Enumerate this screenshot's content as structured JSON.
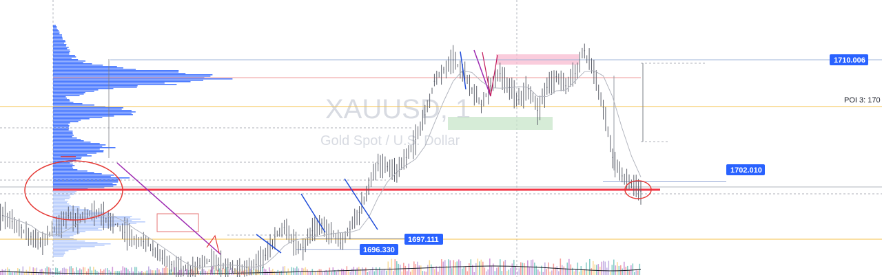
{
  "watermark": {
    "symbol": "XAUUSD, 1",
    "description": "Gold Spot / U.S. Dollar"
  },
  "colors": {
    "candle": "#5d606b",
    "volume_profile": "#2962ff",
    "volume_profile_light": "#a9c2fb",
    "support_line": "#f23645",
    "poi_line": "#f5c04a",
    "price_tag": "#2962ff",
    "annotation_red": "#e53935",
    "pink_zone": "#f8bbd0",
    "green_zone": "#c8e6c9"
  },
  "chart_data": {
    "type": "line",
    "title": "",
    "instrument": "XAUUSD",
    "timeframe": "1",
    "ylim": [
      1694.5,
      1712.5
    ],
    "series": [
      {
        "values": [
          1699.8,
          1699.4,
          1699.0,
          1698.4,
          1698.0,
          1698.6,
          1699.2,
          1699.8,
          1699.5,
          1699.9,
          1700.1,
          1699.6,
          1699.2,
          1698.7,
          1698.3,
          1698.1,
          1697.6,
          1697.0,
          1696.6,
          1696.3,
          1696.2,
          1696.5,
          1696.8,
          1696.6,
          1696.4,
          1696.3,
          1696.4,
          1696.6,
          1697.2,
          1698.4,
          1699.0,
          1698.1,
          1697.7,
          1698.8,
          1699.3,
          1698.6,
          1698.0,
          1698.9,
          1700.0,
          1701.8,
          1703.2,
          1703.0,
          1702.6,
          1703.6,
          1704.8,
          1706.4,
          1708.6,
          1709.4,
          1710.0,
          1709.2,
          1708.1,
          1707.1,
          1708.3,
          1709.1,
          1708.2,
          1707.4,
          1708.1,
          1706.7,
          1708.2,
          1708.9,
          1708.3,
          1709.1,
          1710.6,
          1709.2,
          1706.9,
          1703.6,
          1702.4,
          1701.9,
          1701.4
        ]
      }
    ],
    "price_tags": [
      "1710.006",
      "1702.010",
      "1697.111",
      "1696.330"
    ],
    "annotations": [
      "POI 3: 170"
    ]
  }
}
